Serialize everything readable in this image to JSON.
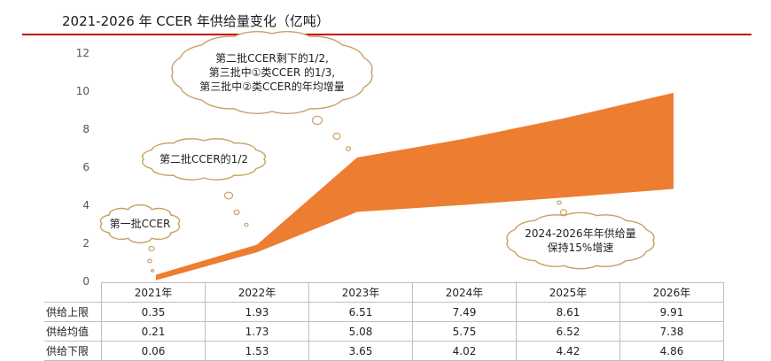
{
  "title": "2021-2026 年 CCER 年供给量变化（亿吨）",
  "colors": {
    "accent": "#c00000",
    "band": "#ed7d31",
    "cloud_border": "#c8a065"
  },
  "chart_data": {
    "type": "area",
    "categories": [
      "2021年",
      "2022年",
      "2023年",
      "2024年",
      "2025年",
      "2026年"
    ],
    "series": [
      {
        "name": "供给上限",
        "values": [
          0.35,
          1.93,
          6.51,
          7.49,
          8.61,
          9.91
        ]
      },
      {
        "name": "供给均值",
        "values": [
          0.21,
          1.73,
          5.08,
          5.75,
          6.52,
          7.38
        ]
      },
      {
        "name": "供给下限",
        "values": [
          0.06,
          1.53,
          3.65,
          4.02,
          4.42,
          4.86
        ]
      }
    ],
    "ylim": [
      0,
      12
    ],
    "yticks": [
      0,
      2,
      4,
      6,
      8,
      10,
      12
    ],
    "grid": false,
    "annotations": [
      {
        "id": "a1",
        "lines": [
          "第一批CCER"
        ]
      },
      {
        "id": "a2",
        "lines": [
          "第二批CCER的1/2"
        ]
      },
      {
        "id": "a3",
        "lines": [
          "第二批CCER剩下的1/2,",
          "第三批中①类CCER 的1/3,",
          "第三批中②类CCER的年均增量"
        ]
      },
      {
        "id": "a4",
        "lines": [
          "2024-2026年年供给量",
          "保持15%增速"
        ]
      }
    ]
  },
  "table": {
    "header": [
      "2021年",
      "2022年",
      "2023年",
      "2024年",
      "2025年",
      "2026年"
    ],
    "rows": [
      {
        "label": "供给上限",
        "values": [
          "0.35",
          "1.93",
          "6.51",
          "7.49",
          "8.61",
          "9.91"
        ]
      },
      {
        "label": "供给均值",
        "values": [
          "0.21",
          "1.73",
          "5.08",
          "5.75",
          "6.52",
          "7.38"
        ]
      },
      {
        "label": "供给下限",
        "values": [
          "0.06",
          "1.53",
          "3.65",
          "4.02",
          "4.42",
          "4.86"
        ]
      }
    ]
  }
}
